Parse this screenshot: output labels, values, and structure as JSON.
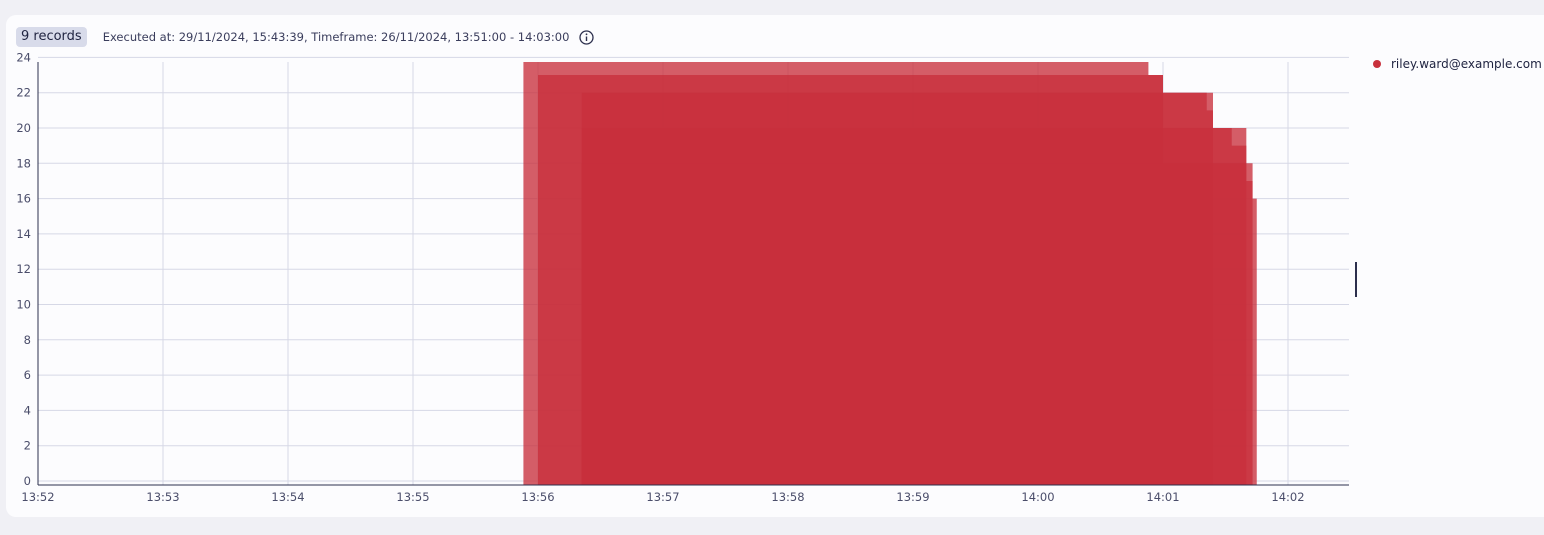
{
  "header": {
    "records_label": "9 records",
    "executed_text": "Executed at: 29/11/2024, 15:43:39, Timeframe: 26/11/2024, 13:51:00 - 14:03:00"
  },
  "legend": {
    "entries": [
      {
        "name": "riley.ward@example.com",
        "color": "#c8303c"
      }
    ]
  },
  "chart_data": {
    "type": "area",
    "x_ticks": [
      "13:52",
      "13:53",
      "13:54",
      "13:55",
      "13:56",
      "13:57",
      "13:58",
      "13:59",
      "14:00",
      "14:01",
      "14:02"
    ],
    "x_range": [
      "13:52:00",
      "14:02:30"
    ],
    "ylim": [
      0,
      24
    ],
    "y_ticks": [
      0,
      2,
      4,
      6,
      8,
      10,
      12,
      14,
      16,
      18,
      20,
      22,
      24
    ],
    "grid": true,
    "legend_placement": "right",
    "series_color": "#c8303c",
    "series": [
      {
        "name": "riley.ward@example.com",
        "start": "13:55:53",
        "steps": [
          [
            "14:00:53",
            24
          ],
          [
            "14:01:00",
            23
          ]
        ]
      },
      {
        "name": "riley.ward@example.com",
        "start": "13:56:00",
        "steps": [
          [
            "14:01:00",
            23
          ],
          [
            "14:01:21",
            22
          ],
          [
            "14:01:24",
            21
          ]
        ]
      },
      {
        "name": "riley.ward@example.com",
        "start": "13:56:21",
        "steps": [
          [
            "14:01:24",
            22
          ],
          [
            "14:01:33",
            20
          ],
          [
            "14:01:40",
            19
          ]
        ]
      },
      {
        "name": "riley.ward@example.com",
        "start": "13:56:21",
        "steps": [
          [
            "14:01:40",
            20
          ],
          [
            "14:01:43",
            17
          ]
        ]
      },
      {
        "name": "riley.ward@example.com",
        "start": "13:56:21",
        "steps": [
          [
            "14:01:43",
            18
          ],
          [
            "14:01:45",
            16
          ]
        ]
      }
    ]
  }
}
